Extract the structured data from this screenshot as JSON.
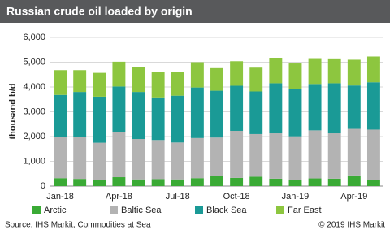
{
  "chart_data": {
    "type": "stacked-bar",
    "title": "Russian crude oil loaded by origin",
    "ylabel": "thousand b/d",
    "source": "Source: IHS Markit, Commodities at Sea",
    "copyright": "© 2019 IHS Markit",
    "categories": [
      "Jan-18",
      null,
      null,
      "Apr-18",
      null,
      null,
      "Jul-18",
      null,
      null,
      "Oct-18",
      null,
      null,
      "Jan-19",
      null,
      null,
      "Apr-19",
      null
    ],
    "series": [
      {
        "name": "Arctic",
        "color": "#3aaa35",
        "values": [
          320,
          290,
          260,
          360,
          270,
          280,
          270,
          320,
          400,
          330,
          380,
          300,
          240,
          310,
          300,
          430,
          260
        ]
      },
      {
        "name": "Baltic Sea",
        "color": "#b3b3b3",
        "values": [
          1680,
          1690,
          1490,
          1820,
          1630,
          1580,
          1490,
          1620,
          1560,
          1900,
          1720,
          1830,
          1770,
          1940,
          1830,
          1880,
          2020
        ]
      },
      {
        "name": "Black Sea",
        "color": "#1a9a96",
        "values": [
          1680,
          1820,
          1860,
          1840,
          1900,
          1720,
          1890,
          2040,
          1890,
          1820,
          1720,
          2020,
          1910,
          1870,
          2020,
          1750,
          1910
        ]
      },
      {
        "name": "Far East",
        "color": "#8dc63f",
        "values": [
          1000,
          880,
          960,
          1000,
          1000,
          1020,
          970,
          1020,
          910,
          990,
          960,
          1000,
          1030,
          1010,
          970,
          1040,
          1040
        ]
      }
    ],
    "ylim": [
      0,
      6000
    ],
    "yticks": [
      0,
      {
        "value": 1000,
        "label": "1,000"
      },
      {
        "value": 2000,
        "label": "2,000"
      },
      {
        "value": 3000,
        "label": "3,000"
      },
      {
        "value": 4000,
        "label": "4,000"
      },
      {
        "value": 5000,
        "label": "5,000"
      },
      {
        "value": 6000,
        "label": "6,000"
      }
    ],
    "grid": true
  }
}
